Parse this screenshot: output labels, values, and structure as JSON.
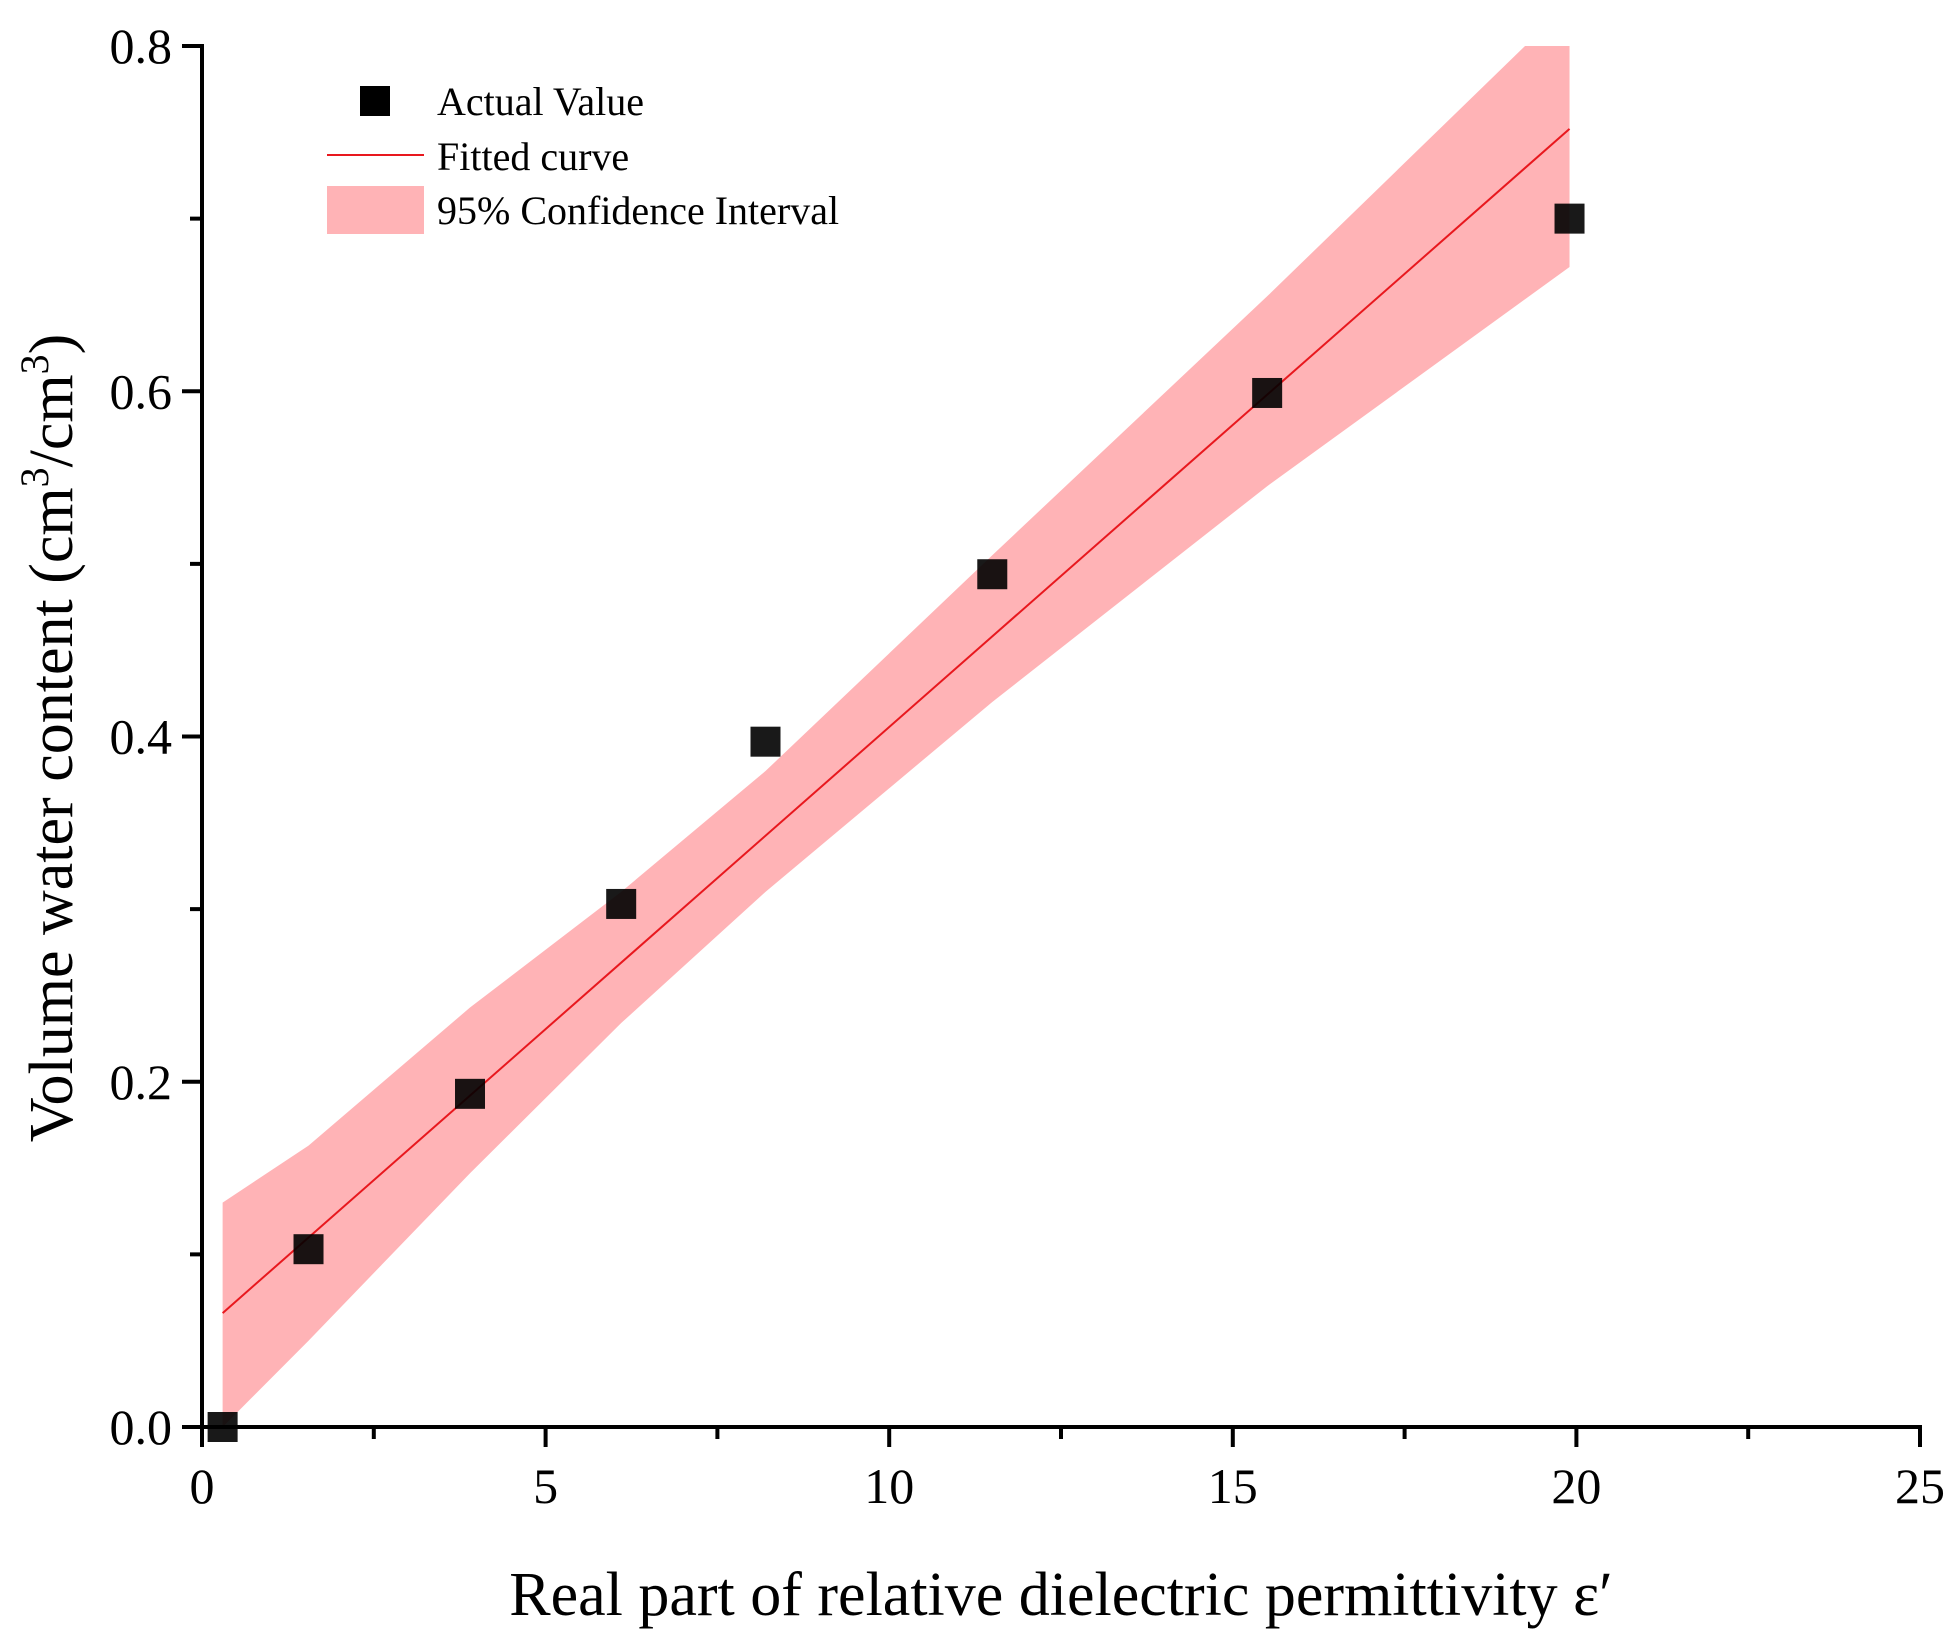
{
  "chart_data": {
    "type": "scatter",
    "title": "",
    "xlabel": "Real part of relative dielectric permittivity ε′",
    "ylabel_main": "Volume water content (cm",
    "ylabel_sup1": "3",
    "ylabel_mid": "/cm",
    "ylabel_sup2": "3",
    "ylabel_end": ")",
    "xlim": [
      0,
      25
    ],
    "ylim": [
      0,
      0.8
    ],
    "x_ticks": [
      0,
      5,
      10,
      15,
      20,
      25
    ],
    "x_tick_labels": [
      "0",
      "5",
      "10",
      "15",
      "20",
      "25"
    ],
    "x_minor_ticks": [
      2.5,
      7.5,
      12.5,
      17.5,
      22.5
    ],
    "y_ticks": [
      0,
      0.2,
      0.4,
      0.6,
      0.8
    ],
    "y_tick_labels": [
      "0.0",
      "0.2",
      "0.4",
      "0.6",
      "0.8"
    ],
    "y_minor_ticks": [
      0.1,
      0.3,
      0.5,
      0.7
    ],
    "grid": false,
    "legend_position": "top-left",
    "series": [
      {
        "name": "Actual Value",
        "kind": "scatter",
        "color": "#000000",
        "x": [
          0.3,
          1.55,
          3.9,
          6.1,
          8.2,
          11.5,
          15.5,
          19.9
        ],
        "y": [
          0.0,
          0.103,
          0.193,
          0.303,
          0.397,
          0.494,
          0.599,
          0.7
        ]
      },
      {
        "name": "Fitted curve",
        "kind": "line",
        "color": "#e8181e",
        "x": [
          0.3,
          19.9
        ],
        "y": [
          0.066,
          0.752
        ]
      },
      {
        "name": "95% Confidence Interval",
        "kind": "band",
        "color": "#ffb3b6",
        "x": [
          0.3,
          1.55,
          3.9,
          6.1,
          8.2,
          11.5,
          15.5,
          19.9
        ],
        "upper": [
          0.13,
          0.163,
          0.243,
          0.31,
          0.38,
          0.505,
          0.655,
          0.825
        ],
        "lower": [
          0.0,
          0.05,
          0.147,
          0.234,
          0.31,
          0.42,
          0.545,
          0.672
        ]
      }
    ]
  }
}
